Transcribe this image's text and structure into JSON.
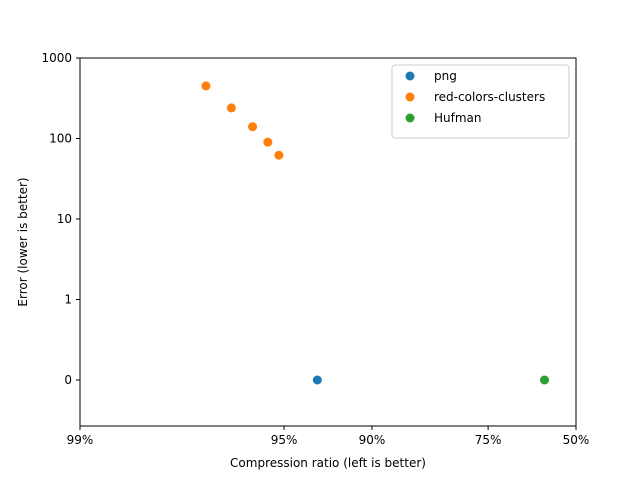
{
  "chart_data": {
    "type": "scatter",
    "title": "",
    "xlabel": "Compression ratio (left is better)",
    "ylabel": "Error (lower is better)",
    "x_scale": "log of (1 - compression ratio)",
    "y_scale": "symlog",
    "xlim": [
      "99%",
      "50%"
    ],
    "ylim": [
      0,
      1000
    ],
    "x_ticks": [
      "99%",
      "95%",
      "90%",
      "75%",
      "50%"
    ],
    "y_ticks": [
      "0",
      "1",
      "10",
      "100",
      "1000"
    ],
    "grid": false,
    "legend_position": "upper right",
    "series": [
      {
        "name": "png",
        "color": "#1f77b4",
        "points": [
          {
            "x": "93.5%",
            "y": 0
          }
        ]
      },
      {
        "name": "red-colors-clusters",
        "color": "#ff7f0e",
        "points": [
          {
            "x": "97.3%",
            "y": 450
          },
          {
            "x": "96.7%",
            "y": 240
          },
          {
            "x": "96.1%",
            "y": 140
          },
          {
            "x": "95.6%",
            "y": 90
          },
          {
            "x": "95.2%",
            "y": 62
          }
        ]
      },
      {
        "name": "Hufman",
        "color": "#2ca02c",
        "points": [
          {
            "x": "61%",
            "y": 0
          }
        ]
      }
    ]
  }
}
